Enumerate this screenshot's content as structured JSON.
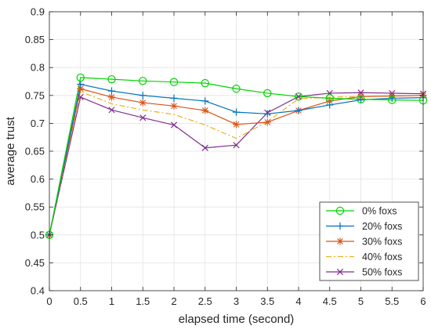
{
  "chart_data": {
    "type": "line",
    "xlabel": "elapsed time (second)",
    "ylabel": "average trust",
    "xlim": [
      0,
      6
    ],
    "ylim": [
      0.4,
      0.9
    ],
    "x_ticks": [
      "0",
      "0.5",
      "1",
      "1.5",
      "2",
      "2.5",
      "3",
      "3.5",
      "4",
      "4.5",
      "5",
      "5.5",
      "6"
    ],
    "y_ticks": [
      "0.4",
      "0.45",
      "0.5",
      "0.55",
      "0.6",
      "0.65",
      "0.7",
      "0.75",
      "0.8",
      "0.85",
      "0.9"
    ],
    "grid": true,
    "legend_position": "bottom-right",
    "x": [
      0,
      0.5,
      1,
      1.5,
      2,
      2.5,
      3,
      3.5,
      4,
      4.5,
      5,
      5.5,
      6
    ],
    "series": [
      {
        "name": "0% foxs",
        "color": "#00d400",
        "marker": "circle",
        "dash": "solid",
        "values": [
          0.5,
          0.782,
          0.779,
          0.776,
          0.774,
          0.772,
          0.762,
          0.754,
          0.748,
          0.745,
          0.743,
          0.742,
          0.741
        ]
      },
      {
        "name": "20% foxs",
        "color": "#0072bd",
        "marker": "plus",
        "dash": "solid",
        "values": [
          0.5,
          0.77,
          0.758,
          0.75,
          0.745,
          0.74,
          0.72,
          0.717,
          0.723,
          0.733,
          0.742,
          0.745,
          0.746
        ]
      },
      {
        "name": "30% foxs",
        "color": "#d95319",
        "marker": "asterisk",
        "dash": "solid",
        "values": [
          0.5,
          0.762,
          0.747,
          0.737,
          0.731,
          0.723,
          0.698,
          0.702,
          0.723,
          0.74,
          0.748,
          0.749,
          0.75
        ]
      },
      {
        "name": "40% foxs",
        "color": "#edb120",
        "marker": "none",
        "dash": "dashdot",
        "values": [
          0.5,
          0.757,
          0.735,
          0.724,
          0.716,
          0.697,
          0.673,
          0.703,
          0.744,
          0.747,
          0.748,
          0.749,
          0.75
        ]
      },
      {
        "name": "50% foxs",
        "color": "#7e2f8e",
        "marker": "x",
        "dash": "solid",
        "values": [
          0.5,
          0.747,
          0.724,
          0.71,
          0.697,
          0.656,
          0.661,
          0.719,
          0.748,
          0.754,
          0.755,
          0.754,
          0.753
        ]
      }
    ]
  }
}
